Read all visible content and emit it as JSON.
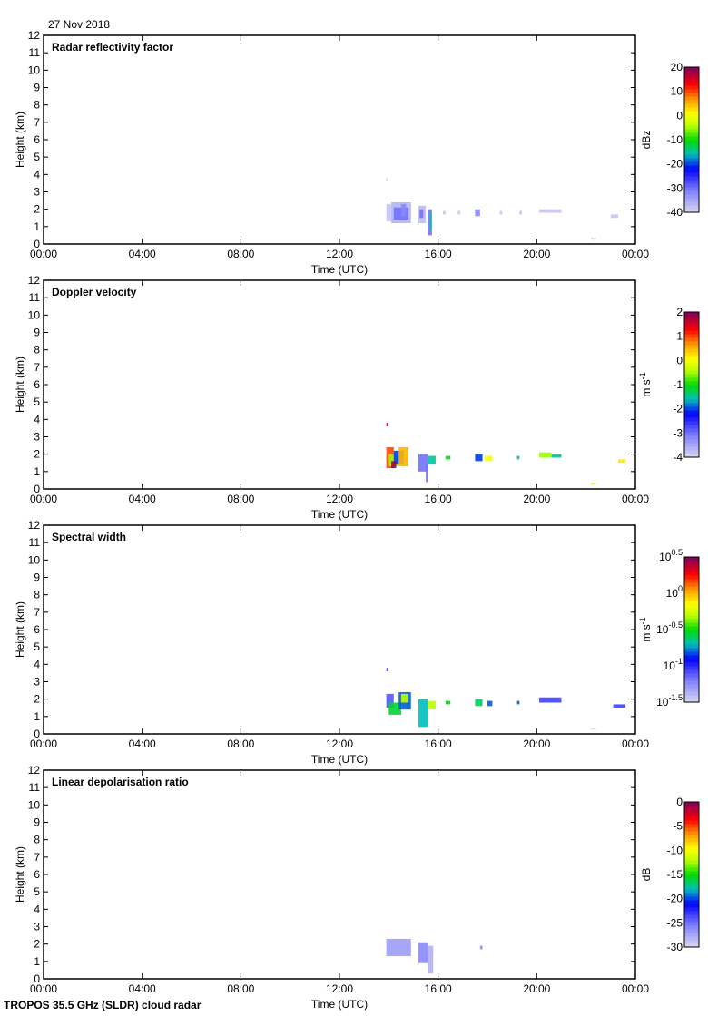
{
  "header": {
    "date": "27 Nov 2018"
  },
  "footer": {
    "label": "TROPOS 35.5 GHz (SLDR) cloud radar"
  },
  "chart_data": [
    {
      "type": "heatmap",
      "title": "Radar reflectivity factor",
      "xlabel": "Time (UTC)",
      "ylabel": "Height (km)",
      "xlim": [
        0,
        24
      ],
      "ylim": [
        0,
        12
      ],
      "xticks": [
        "00:00",
        "04:00",
        "08:00",
        "12:00",
        "16:00",
        "20:00",
        "00:00"
      ],
      "yticks": [
        "0",
        "1",
        "2",
        "3",
        "4",
        "5",
        "6",
        "7",
        "8",
        "9",
        "10",
        "11",
        "12"
      ],
      "colorbar": {
        "unit": "dBz",
        "unit_sup": "",
        "range": [
          -40,
          20
        ],
        "ticks": [
          {
            "v": 20,
            "label": "20",
            "sup": ""
          },
          {
            "v": 10,
            "label": "10",
            "sup": ""
          },
          {
            "v": 0,
            "label": "0",
            "sup": ""
          },
          {
            "v": -10,
            "label": "-10",
            "sup": ""
          },
          {
            "v": -20,
            "label": "-20",
            "sup": ""
          },
          {
            "v": -30,
            "label": "-30",
            "sup": ""
          },
          {
            "v": -40,
            "label": "-40",
            "sup": ""
          }
        ]
      },
      "patches": [
        [
          13.9,
          14.1,
          1.3,
          2.3,
          -38
        ],
        [
          14.1,
          14.9,
          1.2,
          2.4,
          -36
        ],
        [
          14.2,
          14.8,
          1.4,
          2.1,
          -30
        ],
        [
          14.5,
          14.7,
          1.6,
          2.3,
          -32
        ],
        [
          15.2,
          15.5,
          1.2,
          2.2,
          -37
        ],
        [
          15.25,
          15.4,
          1.5,
          2.0,
          -30
        ],
        [
          15.6,
          15.75,
          0.5,
          2.0,
          -30
        ],
        [
          15.68,
          15.74,
          0.8,
          1.8,
          -15
        ],
        [
          16.2,
          16.3,
          1.7,
          1.9,
          -38
        ],
        [
          16.8,
          16.9,
          1.7,
          1.9,
          -38
        ],
        [
          17.5,
          17.7,
          1.6,
          2.0,
          -32
        ],
        [
          18.5,
          18.6,
          1.7,
          1.9,
          -38
        ],
        [
          19.3,
          19.4,
          1.7,
          1.9,
          -38
        ],
        [
          20.1,
          21.0,
          1.8,
          2.0,
          -38
        ],
        [
          23.0,
          23.3,
          1.5,
          1.7,
          -38
        ],
        [
          22.2,
          22.4,
          0.25,
          0.35,
          -38
        ],
        [
          13.9,
          13.95,
          3.6,
          3.8,
          -38
        ]
      ]
    },
    {
      "type": "heatmap",
      "title": "Doppler velocity",
      "xlabel": "Time (UTC)",
      "ylabel": "Height (km)",
      "xlim": [
        0,
        24
      ],
      "ylim": [
        0,
        12
      ],
      "xticks": [
        "00:00",
        "04:00",
        "08:00",
        "12:00",
        "16:00",
        "20:00",
        "00:00"
      ],
      "yticks": [
        "0",
        "1",
        "2",
        "3",
        "4",
        "5",
        "6",
        "7",
        "8",
        "9",
        "10",
        "11",
        "12"
      ],
      "colorbar": {
        "unit": "m s",
        "unit_sup": "-1",
        "range": [
          -4,
          2
        ],
        "ticks": [
          {
            "v": 2,
            "label": "2",
            "sup": ""
          },
          {
            "v": 1,
            "label": "1",
            "sup": ""
          },
          {
            "v": 0,
            "label": "0",
            "sup": ""
          },
          {
            "v": -1,
            "label": "-1",
            "sup": ""
          },
          {
            "v": -2,
            "label": "-2",
            "sup": ""
          },
          {
            "v": -3,
            "label": "-3",
            "sup": ""
          },
          {
            "v": -4,
            "label": "-4",
            "sup": ""
          }
        ]
      },
      "patches": [
        [
          13.9,
          14.2,
          1.2,
          2.4,
          1
        ],
        [
          14.0,
          14.4,
          1.3,
          2.0,
          -0.5
        ],
        [
          14.2,
          14.6,
          1.4,
          2.2,
          -2.0
        ],
        [
          14.4,
          14.8,
          1.3,
          2.4,
          0.5
        ],
        [
          14.1,
          14.3,
          1.2,
          1.6,
          1.8
        ],
        [
          15.2,
          15.6,
          1.0,
          2.0,
          -3
        ],
        [
          15.6,
          15.9,
          1.4,
          1.9,
          -1.5
        ],
        [
          15.5,
          15.6,
          0.4,
          1.4,
          -3
        ],
        [
          16.3,
          16.5,
          1.7,
          1.9,
          -1
        ],
        [
          17.5,
          17.8,
          1.6,
          2.0,
          -2
        ],
        [
          17.9,
          18.2,
          1.6,
          1.9,
          0
        ],
        [
          19.2,
          19.3,
          1.7,
          1.9,
          -1.5
        ],
        [
          20.1,
          20.6,
          1.8,
          2.1,
          -0.5
        ],
        [
          20.6,
          21.0,
          1.8,
          2.0,
          -1.5
        ],
        [
          23.3,
          23.6,
          1.5,
          1.7,
          0.2
        ],
        [
          22.2,
          22.4,
          0.25,
          0.35,
          -0.3
        ],
        [
          13.9,
          13.98,
          3.6,
          3.8,
          1.5
        ]
      ]
    },
    {
      "type": "heatmap",
      "title": "Spectral width",
      "xlabel": "Time (UTC)",
      "ylabel": "Height (km)",
      "xlim": [
        0,
        24
      ],
      "ylim": [
        0,
        12
      ],
      "xticks": [
        "00:00",
        "04:00",
        "08:00",
        "12:00",
        "16:00",
        "20:00",
        "00:00"
      ],
      "yticks": [
        "0",
        "1",
        "2",
        "3",
        "4",
        "5",
        "6",
        "7",
        "8",
        "9",
        "10",
        "11",
        "12"
      ],
      "colorbar": {
        "unit": "m s",
        "unit_sup": "-1",
        "range": [
          -1.5,
          0.5
        ],
        "ticks": [
          {
            "v": 0.5,
            "label": "10",
            "sup": "0.5"
          },
          {
            "v": 0,
            "label": "10",
            "sup": "0"
          },
          {
            "v": -0.5,
            "label": "10",
            "sup": "-0.5"
          },
          {
            "v": -1,
            "label": "10",
            "sup": "-1"
          },
          {
            "v": -1.5,
            "label": "10",
            "sup": "-1.5"
          }
        ]
      },
      "patches": [
        [
          13.9,
          14.2,
          1.5,
          2.3,
          -1.1
        ],
        [
          14.0,
          14.5,
          1.1,
          1.8,
          -0.55
        ],
        [
          14.4,
          14.9,
          1.4,
          2.4,
          -0.8
        ],
        [
          14.5,
          14.8,
          1.8,
          2.3,
          -0.3
        ],
        [
          15.2,
          15.6,
          0.4,
          2.0,
          -0.7
        ],
        [
          15.6,
          15.9,
          1.4,
          1.9,
          -0.3
        ],
        [
          16.3,
          16.5,
          1.7,
          1.9,
          -0.5
        ],
        [
          17.5,
          17.8,
          1.6,
          2.0,
          -0.6
        ],
        [
          18.0,
          18.2,
          1.6,
          1.9,
          -0.8
        ],
        [
          19.2,
          19.3,
          1.7,
          1.9,
          -0.8
        ],
        [
          20.1,
          21.0,
          1.8,
          2.1,
          -1.05
        ],
        [
          23.1,
          23.6,
          1.5,
          1.7,
          -1.05
        ],
        [
          22.2,
          22.4,
          0.25,
          0.35,
          -1.5
        ],
        [
          13.9,
          13.98,
          3.6,
          3.8,
          -1.1
        ]
      ]
    },
    {
      "type": "heatmap",
      "title": "Linear depolarisation ratio",
      "xlabel": "Time (UTC)",
      "ylabel": "Height (km)",
      "xlim": [
        0,
        24
      ],
      "ylim": [
        0,
        12
      ],
      "xticks": [
        "00:00",
        "04:00",
        "08:00",
        "12:00",
        "16:00",
        "20:00",
        "00:00"
      ],
      "yticks": [
        "0",
        "1",
        "2",
        "3",
        "4",
        "5",
        "6",
        "7",
        "8",
        "9",
        "10",
        "11",
        "12"
      ],
      "colorbar": {
        "unit": "dB",
        "unit_sup": "",
        "range": [
          -30,
          0
        ],
        "ticks": [
          {
            "v": 0,
            "label": "0",
            "sup": ""
          },
          {
            "v": -5,
            "label": "-5",
            "sup": ""
          },
          {
            "v": -10,
            "label": "-10",
            "sup": ""
          },
          {
            "v": -15,
            "label": "-15",
            "sup": ""
          },
          {
            "v": -20,
            "label": "-20",
            "sup": ""
          },
          {
            "v": -25,
            "label": "-25",
            "sup": ""
          },
          {
            "v": -30,
            "label": "-30",
            "sup": ""
          }
        ]
      },
      "patches": [
        [
          13.9,
          14.9,
          1.3,
          2.3,
          -27
        ],
        [
          15.2,
          15.6,
          0.9,
          2.1,
          -26
        ],
        [
          15.6,
          15.8,
          0.3,
          1.9,
          -28
        ],
        [
          17.7,
          17.8,
          1.7,
          1.9,
          -26
        ]
      ]
    }
  ]
}
